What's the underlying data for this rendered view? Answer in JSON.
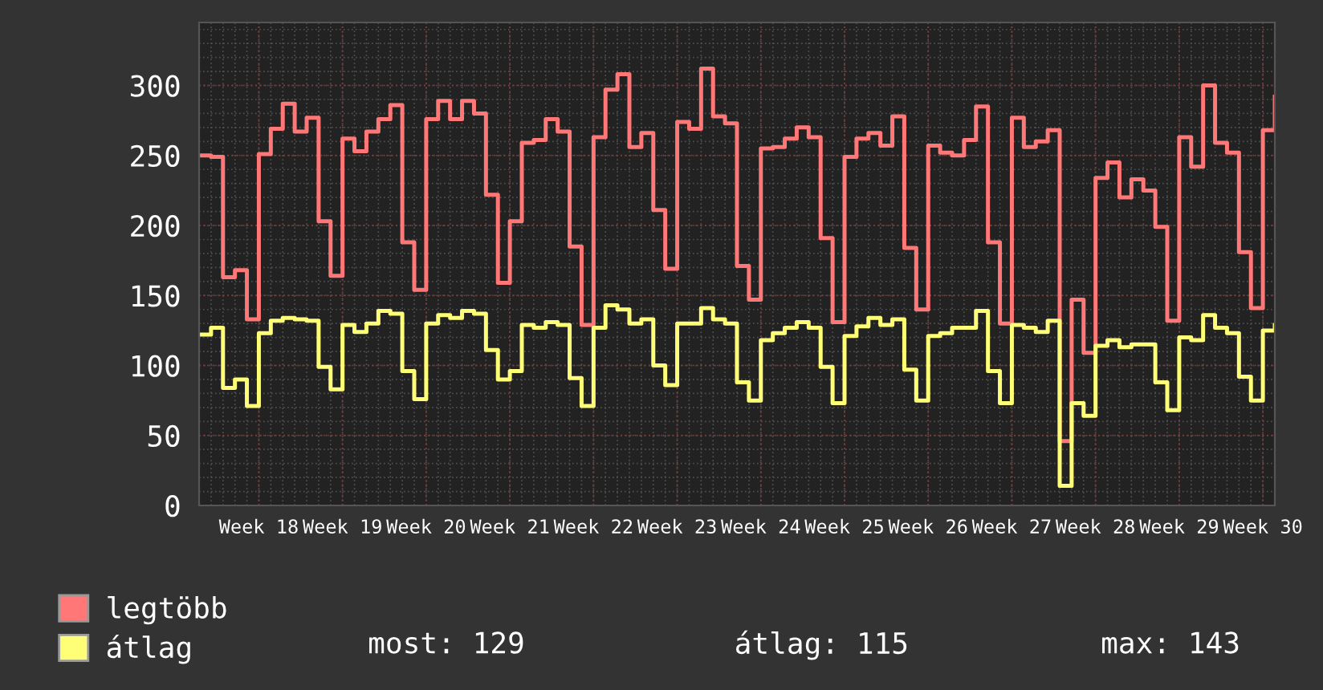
{
  "chart_data": {
    "type": "step",
    "categories": [
      null,
      null,
      null,
      null,
      null,
      "Week 18",
      null,
      null,
      null,
      null,
      null,
      null,
      "Week 19",
      null,
      null,
      null,
      null,
      null,
      null,
      "Week 20",
      null,
      null,
      null,
      null,
      null,
      null,
      "Week 21",
      null,
      null,
      null,
      null,
      null,
      null,
      "Week 22",
      null,
      null,
      null,
      null,
      null,
      null,
      "Week 23",
      null,
      null,
      null,
      null,
      null,
      null,
      "Week 24",
      null,
      null,
      null,
      null,
      null,
      null,
      "Week 25",
      null,
      null,
      null,
      null,
      null,
      null,
      "Week 26",
      null,
      null,
      null,
      null,
      null,
      null,
      "Week 27",
      null,
      null,
      null,
      null,
      null,
      null,
      "Week 28",
      null,
      null,
      null,
      null,
      null,
      null,
      "Week 29",
      null,
      null,
      null,
      null,
      null,
      null,
      "Week 30",
      null
    ],
    "series": [
      {
        "name": "legtöbb",
        "color": "#ff7777",
        "values": [
          250,
          249,
          163,
          168,
          133,
          251,
          269,
          287,
          267,
          277,
          203,
          164,
          262,
          253,
          267,
          276,
          286,
          188,
          154,
          276,
          289,
          276,
          289,
          280,
          222,
          159,
          203,
          259,
          261,
          276,
          267,
          185,
          129,
          263,
          297,
          308,
          256,
          266,
          211,
          169,
          274,
          269,
          312,
          278,
          273,
          171,
          147,
          255,
          256,
          262,
          270,
          263,
          191,
          131,
          249,
          262,
          266,
          257,
          278,
          184,
          140,
          257,
          252,
          250,
          261,
          285,
          188,
          130,
          277,
          256,
          260,
          268,
          46,
          147,
          109,
          234,
          245,
          220,
          233,
          225,
          199,
          132,
          263,
          242,
          300,
          259,
          252,
          181,
          141,
          268,
          292
        ]
      },
      {
        "name": "átlag",
        "color": "#ffff77",
        "values": [
          122,
          127,
          84,
          90,
          71,
          123,
          132,
          134,
          133,
          132,
          99,
          83,
          129,
          124,
          130,
          139,
          137,
          96,
          76,
          130,
          136,
          134,
          139,
          137,
          111,
          90,
          96,
          129,
          127,
          131,
          129,
          91,
          71,
          127,
          143,
          140,
          130,
          133,
          100,
          86,
          130,
          130,
          141,
          133,
          130,
          88,
          75,
          118,
          123,
          127,
          131,
          127,
          99,
          73,
          121,
          128,
          134,
          129,
          133,
          97,
          75,
          121,
          123,
          127,
          127,
          139,
          96,
          73,
          129,
          127,
          124,
          132,
          14,
          73,
          64,
          114,
          118,
          113,
          115,
          115,
          88,
          68,
          120,
          118,
          136,
          127,
          123,
          92,
          75,
          125,
          129
        ]
      }
    ],
    "ylim": [
      0,
      345
    ],
    "yticks": [
      0,
      50,
      100,
      150,
      200,
      250,
      300
    ],
    "grid": true,
    "legend": "bottom",
    "annotations": [
      "most: 129",
      "átlag: 115",
      "max: 143"
    ]
  }
}
